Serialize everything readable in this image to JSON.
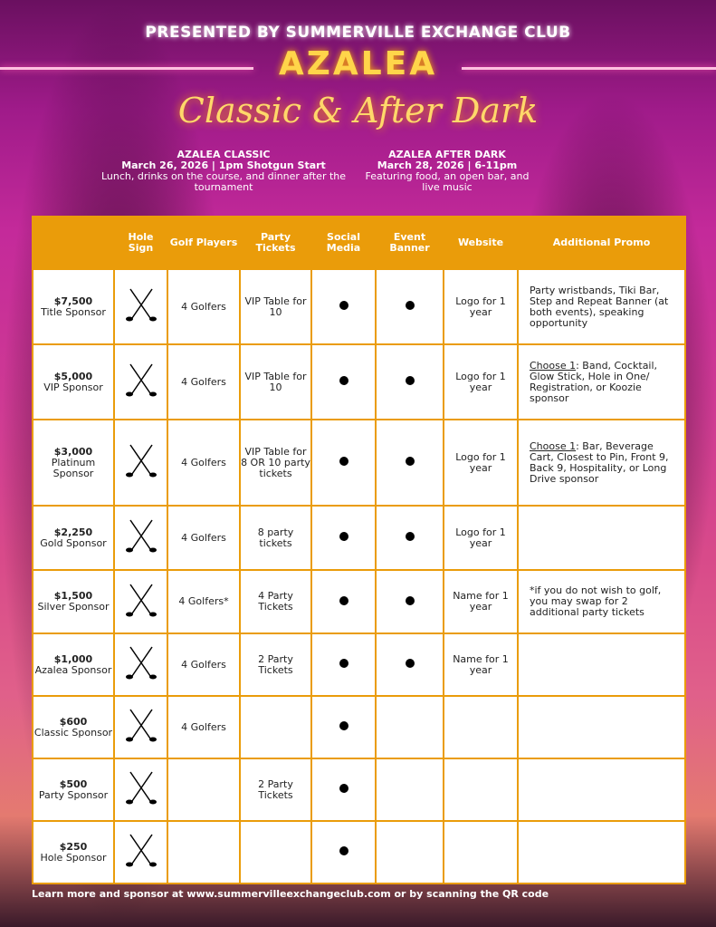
{
  "header": {
    "presented_by": "PRESENTED BY SUMMERVILLE EXCHANGE CLUB",
    "title": "AZALEA",
    "subtitle": "Classic & After Dark"
  },
  "events": [
    {
      "name": "AZALEA CLASSIC",
      "when": "March 26, 2026 | 1pm Shotgun Start",
      "desc": "Lunch, drinks on the course, and dinner after the tournament"
    },
    {
      "name": "AZALEA AFTER DARK",
      "when": "March 28, 2026 | 6-11pm",
      "desc": "Featuring food, an open bar, and live music"
    }
  ],
  "table": {
    "columns": [
      "",
      "Hole Sign",
      "Golf Players",
      "Party Tickets",
      "Social Media",
      "Event Banner",
      "Website",
      "Additional Promo"
    ],
    "rows": [
      {
        "price": "$7,500",
        "level": "Title Sponsor",
        "hole_sign": true,
        "golf": "4 Golfers",
        "party": "VIP Table for 10",
        "social": true,
        "banner": true,
        "website": "Logo for 1 year",
        "promo_prefix": "",
        "promo": "Party wristbands, Tiki Bar, Step and Repeat Banner (at both events), speaking opportunity"
      },
      {
        "price": "$5,000",
        "level": "VIP Sponsor",
        "hole_sign": true,
        "golf": "4 Golfers",
        "party": "VIP Table for 10",
        "social": true,
        "banner": true,
        "website": "Logo for 1 year",
        "promo_prefix": "Choose 1",
        "promo": ": Band, Cocktail, Glow Stick, Hole in One/ Registration, or Koozie sponsor"
      },
      {
        "price": "$3,000",
        "level": "Platinum Sponsor",
        "hole_sign": true,
        "golf": "4 Golfers",
        "party": "VIP Table for 8 OR 10 party tickets",
        "social": true,
        "banner": true,
        "website": "Logo for 1 year",
        "promo_prefix": "Choose 1",
        "promo": ": Bar, Beverage Cart, Closest to Pin, Front 9, Back 9, Hospitality, or Long Drive sponsor"
      },
      {
        "price": "$2,250",
        "level": "Gold Sponsor",
        "hole_sign": true,
        "golf": "4 Golfers",
        "party": "8 party tickets",
        "social": true,
        "banner": true,
        "website": "Logo for 1 year",
        "promo_prefix": "",
        "promo": ""
      },
      {
        "price": "$1,500",
        "level": "Silver Sponsor",
        "hole_sign": true,
        "golf": "4 Golfers*",
        "party": "4 Party Tickets",
        "social": true,
        "banner": true,
        "website": "Name for 1 year",
        "promo_prefix": "",
        "promo": "*if you do not wish to golf, you may swap for 2 additional party tickets"
      },
      {
        "price": "$1,000",
        "level": "Azalea Sponsor",
        "hole_sign": true,
        "golf": "4 Golfers",
        "party": "2 Party Tickets",
        "social": true,
        "banner": true,
        "website": "Name for 1 year",
        "promo_prefix": "",
        "promo": ""
      },
      {
        "price": "$600",
        "level": "Classic Sponsor",
        "hole_sign": true,
        "golf": "4 Golfers",
        "party": "",
        "social": true,
        "banner": false,
        "website": "",
        "promo_prefix": "",
        "promo": ""
      },
      {
        "price": "$500",
        "level": "Party Sponsor",
        "hole_sign": true,
        "golf": "",
        "party": "2 Party Tickets",
        "social": true,
        "banner": false,
        "website": "",
        "promo_prefix": "",
        "promo": ""
      },
      {
        "price": "$250",
        "level": "Hole Sponsor",
        "hole_sign": true,
        "golf": "",
        "party": "",
        "social": true,
        "banner": false,
        "website": "",
        "promo_prefix": "",
        "promo": ""
      }
    ]
  },
  "footer": "Learn more and sponsor at www.summervilleexchangeclub.com or by scanning the QR code"
}
